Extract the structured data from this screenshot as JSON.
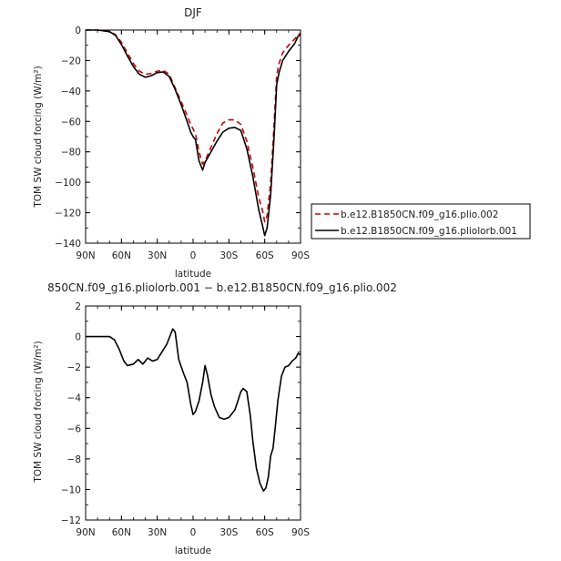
{
  "chart_data": [
    {
      "type": "line",
      "title": "DJF",
      "xlabel": "latitude",
      "ylabel": "TOM SW cloud forcing (W/m²)",
      "x_ticks": [
        {
          "value": 90,
          "label": "90N"
        },
        {
          "value": 60,
          "label": "60N"
        },
        {
          "value": 30,
          "label": "30N"
        },
        {
          "value": 0,
          "label": "0"
        },
        {
          "value": -30,
          "label": "30S"
        },
        {
          "value": -60,
          "label": "60S"
        },
        {
          "value": -90,
          "label": "90S"
        }
      ],
      "xlim": [
        90,
        -90
      ],
      "ylim": [
        -140,
        0
      ],
      "y_ticks": [
        0,
        -20,
        -40,
        -60,
        -80,
        -100,
        -120,
        -140
      ],
      "legend_position": "right",
      "series": [
        {
          "name": "b.e12.B1850CN.f09_g16.plio.002",
          "color": "#cc0000",
          "style": "dashed",
          "x": [
            90,
            80,
            70,
            65,
            60,
            55,
            50,
            45,
            40,
            35,
            30,
            25,
            20,
            15,
            10,
            5,
            2,
            0,
            -2,
            -5,
            -8,
            -10,
            -15,
            -20,
            -25,
            -30,
            -35,
            -40,
            -45,
            -50,
            -55,
            -58,
            -60,
            -62,
            -65,
            -68,
            -70,
            -72,
            -75,
            -80,
            -85,
            -88,
            -90
          ],
          "y": [
            0,
            0,
            -1,
            -3,
            -8,
            -15,
            -22,
            -27,
            -29,
            -28.5,
            -27,
            -26.5,
            -29,
            -38,
            -47,
            -56,
            -62,
            -65,
            -68,
            -80,
            -88,
            -86,
            -77,
            -68,
            -61,
            -59,
            -59,
            -62,
            -73,
            -90,
            -110,
            -118,
            -126,
            -122,
            -100,
            -60,
            -30,
            -22,
            -15,
            -10,
            -6,
            -3,
            -2
          ]
        },
        {
          "name": "b.e12.B1850CN.f09_g16.pliolorb.001",
          "color": "#000000",
          "style": "solid",
          "x": [
            90,
            80,
            70,
            65,
            60,
            55,
            50,
            45,
            40,
            35,
            30,
            25,
            20,
            15,
            10,
            5,
            2,
            0,
            -2,
            -5,
            -8,
            -10,
            -15,
            -20,
            -25,
            -30,
            -35,
            -40,
            -45,
            -50,
            -55,
            -58,
            -60,
            -62,
            -65,
            -68,
            -70,
            -72,
            -75,
            -80,
            -85,
            -88,
            -90
          ],
          "y": [
            0,
            0,
            -1,
            -3.5,
            -9.5,
            -17,
            -24,
            -29,
            -31,
            -30,
            -28,
            -27.5,
            -30.5,
            -39,
            -49,
            -60,
            -67,
            -70,
            -72,
            -86,
            -92,
            -87,
            -80,
            -73,
            -67,
            -64.5,
            -64,
            -66,
            -78,
            -96,
            -118,
            -128,
            -135,
            -130,
            -108,
            -68,
            -36,
            -28,
            -20,
            -14,
            -9,
            -4,
            -3
          ]
        }
      ]
    },
    {
      "type": "line",
      "title": "850CN.f09_g16.pliolorb.001 − b.e12.B1850CN.f09_g16.plio.002",
      "xlabel": "latitude",
      "ylabel": "TOM SW cloud forcing (W/m²)",
      "x_ticks": [
        {
          "value": 90,
          "label": "90N"
        },
        {
          "value": 60,
          "label": "60N"
        },
        {
          "value": 30,
          "label": "30N"
        },
        {
          "value": 0,
          "label": "0"
        },
        {
          "value": -30,
          "label": "30S"
        },
        {
          "value": -60,
          "label": "60S"
        },
        {
          "value": -90,
          "label": "90S"
        }
      ],
      "xlim": [
        90,
        -90
      ],
      "ylim": [
        -12,
        2
      ],
      "y_ticks": [
        2,
        0,
        -2,
        -4,
        -6,
        -8,
        -10,
        -12
      ],
      "series": [
        {
          "color": "#000000",
          "style": "solid",
          "x": [
            90,
            80,
            70,
            66,
            62,
            58,
            55,
            50,
            46,
            42,
            38,
            34,
            30,
            26,
            22,
            19,
            17,
            15,
            12,
            8,
            5,
            2,
            0,
            -2,
            -5,
            -8,
            -10,
            -12,
            -15,
            -18,
            -22,
            -26,
            -30,
            -32,
            -35,
            -38,
            -40,
            -42,
            -45,
            -48,
            -50,
            -53,
            -56,
            -59,
            -61,
            -63,
            -65,
            -67,
            -69,
            -71,
            -74,
            -77,
            -80,
            -83,
            -86,
            -88,
            -90
          ],
          "y": [
            0,
            0,
            0,
            -0.2,
            -0.8,
            -1.6,
            -1.9,
            -1.8,
            -1.5,
            -1.8,
            -1.4,
            -1.6,
            -1.5,
            -1.0,
            -0.5,
            0.1,
            0.5,
            0.3,
            -1.5,
            -2.4,
            -3.0,
            -4.4,
            -5.1,
            -4.9,
            -4.2,
            -3.0,
            -1.9,
            -2.5,
            -3.8,
            -4.6,
            -5.3,
            -5.4,
            -5.3,
            -5.1,
            -4.8,
            -4.1,
            -3.6,
            -3.4,
            -3.6,
            -5.2,
            -6.8,
            -8.6,
            -9.6,
            -10.1,
            -9.9,
            -9.2,
            -7.8,
            -7.3,
            -5.8,
            -4.2,
            -2.6,
            -2.0,
            -1.9,
            -1.6,
            -1.4,
            -1.1,
            -1.2
          ]
        }
      ]
    }
  ]
}
